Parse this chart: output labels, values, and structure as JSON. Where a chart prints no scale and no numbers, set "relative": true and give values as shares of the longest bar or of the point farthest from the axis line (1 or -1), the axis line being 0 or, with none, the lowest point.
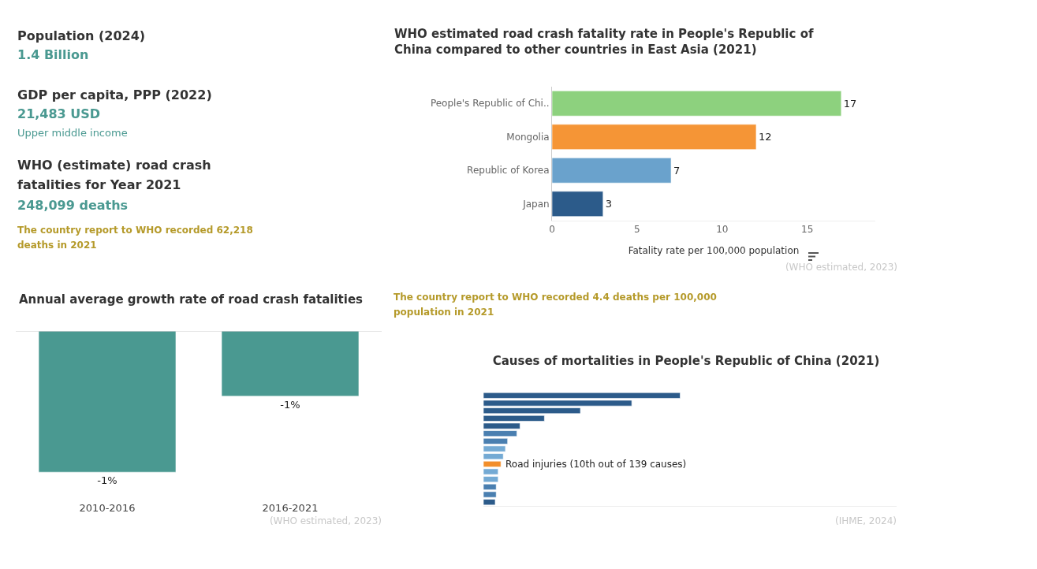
{
  "chart_data": [
    {
      "type": "other",
      "annotations": [
        "Population (2024)",
        "1.4 Billion",
        "GDP per capita, PPP (2022)",
        "21,483 USD",
        "Upper middle income",
        "WHO (estimate) road crash fatalities for Year 2021",
        "248,099 deaths",
        "The country report to WHO recorded 62,218 deaths in 2021"
      ]
    },
    {
      "type": "bar",
      "orientation": "horizontal",
      "title": "WHO estimated road crash fatality rate in People's Republic of China compared to other countries in East Asia (2021)",
      "xlabel": "Fatality rate per 100,000 population",
      "categories": [
        "People's Republic of Chi..",
        "Mongolia",
        "Republic of Korea",
        "Japan"
      ],
      "values": [
        17,
        12,
        7,
        3
      ],
      "colors": [
        "#8dd17e",
        "#f59536",
        "#6aa2cc",
        "#2c5b8a"
      ],
      "xlim": [
        0,
        19
      ],
      "xticks": [
        0,
        5,
        10,
        15
      ],
      "grid": false,
      "data_labels": true,
      "annotations": [
        "(WHO estimated, 2023)",
        "The country report to WHO recorded 4.4 deaths per 100,000 population in 2021"
      ]
    },
    {
      "type": "bar",
      "title": "Annual average growth rate of road crash fatalities",
      "categories": [
        "2010-2016",
        "2016-2021"
      ],
      "values": [
        -1.3,
        -0.6
      ],
      "color": "#4a9991",
      "tick_labels": "x",
      "value_labels": [
        "-1%",
        "-1%"
      ],
      "annotations": [
        "(WHO estimated, 2023)"
      ]
    },
    {
      "type": "bar",
      "orientation": "horizontal",
      "title": "Causes of mortalities in People's Republic of China (2021)",
      "categories": [
        null,
        null,
        null,
        null,
        null,
        null,
        null,
        null,
        null,
        null,
        null,
        null,
        null,
        null,
        null
      ],
      "values": [
        1,
        0.754,
        0.493,
        0.31,
        0.186,
        0.17,
        0.123,
        0.112,
        0.101,
        0.089,
        0.075,
        0.075,
        0.065,
        0.065,
        0.06
      ],
      "colors": [
        "#2c5b8a",
        "#2c5b8a",
        "#2c5b8a",
        "#2c5b8a",
        "#2c5b8a",
        "#4a7fb0",
        "#4a7fb0",
        "#74aad4",
        "#74aad4",
        "#f28e2b",
        "#74aad4",
        "#74aad4",
        "#4a7fb0",
        "#4a7fb0",
        "#2c5b8a"
      ],
      "relative": true,
      "tick_labels": false,
      "annotations": [
        {
          "text": "Road injuries (10th out of 139 causes)",
          "x": 0.089
        },
        "(IHME, 2024)"
      ]
    }
  ]
}
